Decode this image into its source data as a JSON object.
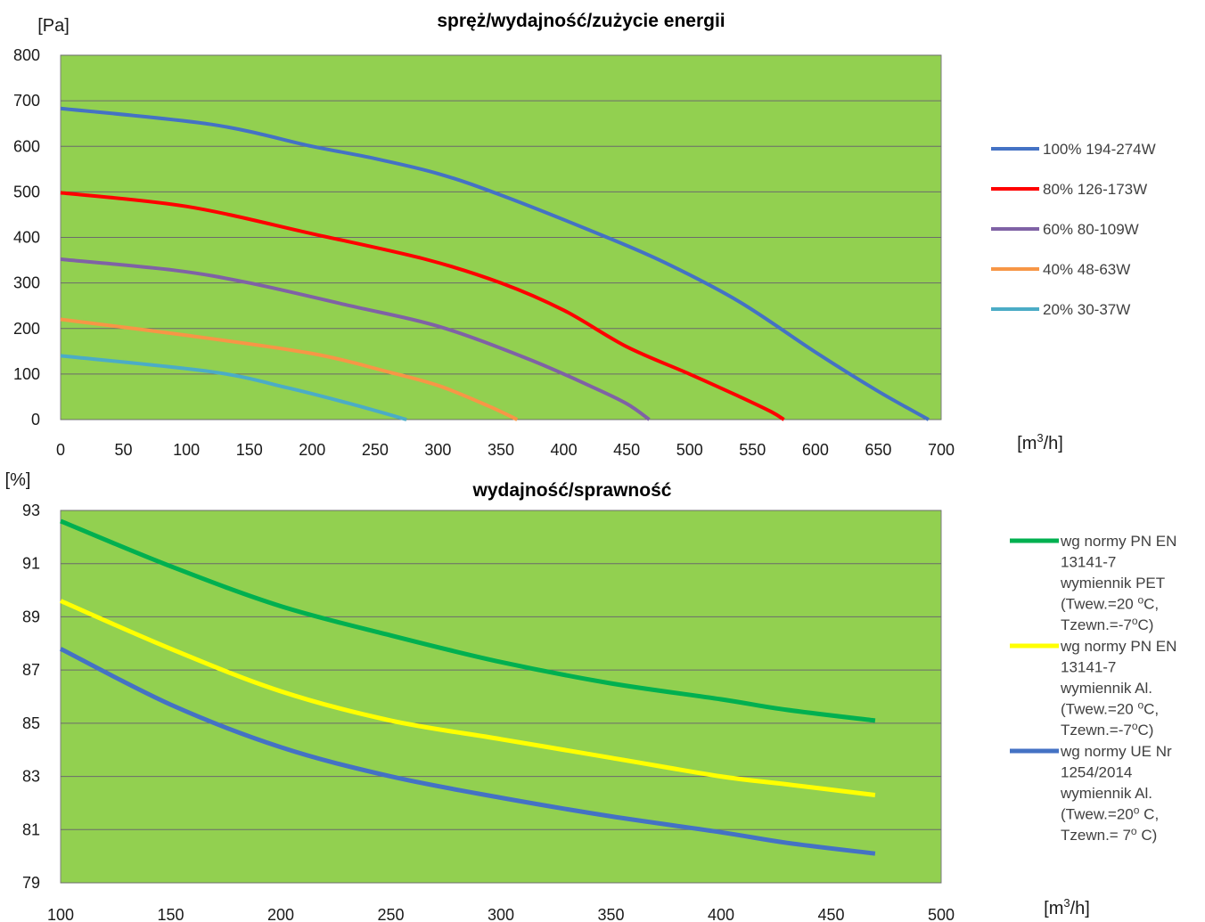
{
  "chart_data": [
    {
      "type": "line",
      "title": "spręż/wydajność/zużycie energii",
      "ylabel": "[Pa]",
      "xlabel": "[m3/h]",
      "xlabel_parts": {
        "base": "[m",
        "sup": "3",
        "tail": "/h]"
      },
      "xlim": [
        0,
        700
      ],
      "ylim": [
        0,
        800
      ],
      "x_ticks": [
        0,
        50,
        100,
        150,
        200,
        250,
        300,
        350,
        400,
        450,
        500,
        550,
        600,
        650,
        700
      ],
      "y_ticks": [
        0,
        100,
        200,
        300,
        400,
        500,
        600,
        700,
        800
      ],
      "grid": true,
      "plot_background": "#92d050",
      "legend_position": "right",
      "series": [
        {
          "name": "100% 194-274W",
          "color": "#4472c4",
          "points": [
            [
              0,
              683
            ],
            [
              120,
              648
            ],
            [
              200,
              600
            ],
            [
              250,
              573
            ],
            [
              300,
              540
            ],
            [
              350,
              493
            ],
            [
              430,
              405
            ],
            [
              480,
              345
            ],
            [
              540,
              258
            ],
            [
              600,
              148
            ],
            [
              650,
              62
            ],
            [
              690,
              0
            ]
          ]
        },
        {
          "name": "80% 126-173W",
          "color": "#ff0000",
          "points": [
            [
              0,
              498
            ],
            [
              100,
              468
            ],
            [
              200,
              408
            ],
            [
              290,
              352
            ],
            [
              350,
              300
            ],
            [
              400,
              240
            ],
            [
              450,
              160
            ],
            [
              500,
              100
            ],
            [
              540,
              50
            ],
            [
              565,
              17
            ],
            [
              575,
              0
            ]
          ]
        },
        {
          "name": "60% 80-109W",
          "color": "#7f62a5",
          "points": [
            [
              0,
              352
            ],
            [
              90,
              328
            ],
            [
              150,
              300
            ],
            [
              230,
              250
            ],
            [
              300,
              205
            ],
            [
              370,
              135
            ],
            [
              420,
              75
            ],
            [
              450,
              35
            ],
            [
              468,
              0
            ]
          ]
        },
        {
          "name": "40% 48-63W",
          "color": "#f79646",
          "points": [
            [
              0,
              220
            ],
            [
              100,
              185
            ],
            [
              200,
              145
            ],
            [
              260,
              105
            ],
            [
              300,
              75
            ],
            [
              340,
              30
            ],
            [
              363,
              0
            ]
          ]
        },
        {
          "name": "20% 30-37W",
          "color": "#4bacc6",
          "points": [
            [
              0,
              140
            ],
            [
              120,
              105
            ],
            [
              180,
              70
            ],
            [
              230,
              35
            ],
            [
              275,
              0
            ]
          ]
        }
      ]
    },
    {
      "type": "line",
      "title": "wydajność/sprawność",
      "ylabel": "[%]",
      "xlabel": "[m3/h]",
      "xlabel_parts": {
        "base": "[m",
        "sup": "3",
        "tail": "/h]"
      },
      "xlim": [
        100,
        500
      ],
      "ylim": [
        79,
        93
      ],
      "x_ticks": [
        100,
        150,
        200,
        250,
        300,
        350,
        400,
        450,
        500
      ],
      "y_ticks": [
        79,
        81,
        83,
        85,
        87,
        89,
        91,
        93
      ],
      "grid": true,
      "plot_background": "#92d050",
      "legend_position": "right",
      "series": [
        {
          "name": "wg normy PN EN 13141-7 wymiennik PET (Twew.=20 oC, Tzewn.=-7oC)",
          "legend_lines": [
            [
              {
                "t": "wg normy PN EN"
              }
            ],
            [
              {
                "t": "13141-7"
              }
            ],
            [
              {
                "t": "wymiennik PET"
              }
            ],
            [
              {
                "t": "(Twew.=20 "
              },
              {
                "t": "o",
                "sup": true
              },
              {
                "t": "C,"
              }
            ],
            [
              {
                "t": "Tzewn.=-7"
              },
              {
                "t": "o",
                "sup": true
              },
              {
                "t": "C)"
              }
            ]
          ],
          "color": "#00b050",
          "points": [
            [
              100,
              92.6
            ],
            [
              150,
              90.9
            ],
            [
              200,
              89.4
            ],
            [
              250,
              88.3
            ],
            [
              300,
              87.3
            ],
            [
              350,
              86.5
            ],
            [
              400,
              85.9
            ],
            [
              430,
              85.5
            ],
            [
              470,
              85.1
            ]
          ]
        },
        {
          "name": "wg normy PN EN 13141-7 wymiennik Al. (Twew.=20 oC, Tzewn.=-7oC)",
          "legend_lines": [
            [
              {
                "t": "wg normy PN EN"
              }
            ],
            [
              {
                "t": "13141-7"
              }
            ],
            [
              {
                "t": "wymiennik  Al."
              }
            ],
            [
              {
                "t": "(Twew.=20 "
              },
              {
                "t": "o",
                "sup": true
              },
              {
                "t": "C,"
              }
            ],
            [
              {
                "t": "Tzewn.=-7"
              },
              {
                "t": "o",
                "sup": true
              },
              {
                "t": "C)"
              }
            ]
          ],
          "color": "#ffff00",
          "points": [
            [
              100,
              89.6
            ],
            [
              150,
              87.8
            ],
            [
              200,
              86.2
            ],
            [
              250,
              85.1
            ],
            [
              300,
              84.4
            ],
            [
              350,
              83.7
            ],
            [
              400,
              83.0
            ],
            [
              430,
              82.7
            ],
            [
              470,
              82.3
            ]
          ]
        },
        {
          "name": "wg normy UE Nr 1254/2014 wymiennik Al. (Twew.=20o C, Tzewn.= 7o C)",
          "legend_lines": [
            [
              {
                "t": "wg normy UE Nr"
              }
            ],
            [
              {
                "t": "1254/2014"
              }
            ],
            [
              {
                "t": "wymiennik Al."
              }
            ],
            [
              {
                "t": "(Twew.=20"
              },
              {
                "t": "o",
                "sup": true
              },
              {
                "t": " C,"
              }
            ],
            [
              {
                "t": "Tzewn.= 7"
              },
              {
                "t": "o",
                "sup": true
              },
              {
                "t": " C)"
              }
            ]
          ],
          "color": "#4472c4",
          "points": [
            [
              100,
              87.8
            ],
            [
              150,
              85.7
            ],
            [
              200,
              84.1
            ],
            [
              250,
              83.0
            ],
            [
              300,
              82.2
            ],
            [
              350,
              81.5
            ],
            [
              400,
              80.9
            ],
            [
              430,
              80.5
            ],
            [
              470,
              80.1
            ]
          ]
        }
      ]
    }
  ]
}
